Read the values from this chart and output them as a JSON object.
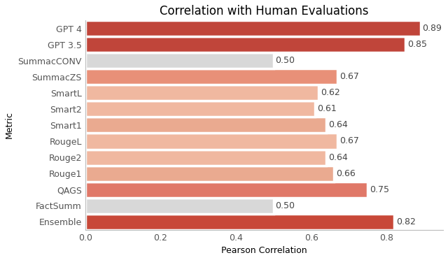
{
  "title": "Correlation with Human Evaluations",
  "xlabel": "Pearson Correlation",
  "ylabel": "Metric",
  "categories": [
    "GPT 4",
    "GPT 3.5",
    "SummacCONV",
    "SummacZS",
    "SmartL",
    "Smart2",
    "Smart1",
    "RougeL",
    "Rouge2",
    "Rouge1",
    "QAGS",
    "FactSumm",
    "Ensemble"
  ],
  "values": [
    0.89,
    0.85,
    0.5,
    0.67,
    0.62,
    0.61,
    0.64,
    0.67,
    0.64,
    0.66,
    0.75,
    0.5,
    0.82
  ],
  "colors": [
    "#c0453a",
    "#c0453a",
    "#d8d8d8",
    "#e89078",
    "#f0b8a0",
    "#f0b8a0",
    "#eaaa90",
    "#f0b8a0",
    "#f0b8a0",
    "#eaaa90",
    "#e07868",
    "#d8d8d8",
    "#c84838"
  ],
  "xlim": [
    0.0,
    0.95
  ],
  "xticks": [
    0.0,
    0.2,
    0.4,
    0.6,
    0.8
  ],
  "background_color": "#ffffff",
  "title_fontsize": 12,
  "label_fontsize": 9,
  "tick_fontsize": 9,
  "annotation_fontsize": 9,
  "bar_height": 1.0,
  "linewidth": 2.5
}
